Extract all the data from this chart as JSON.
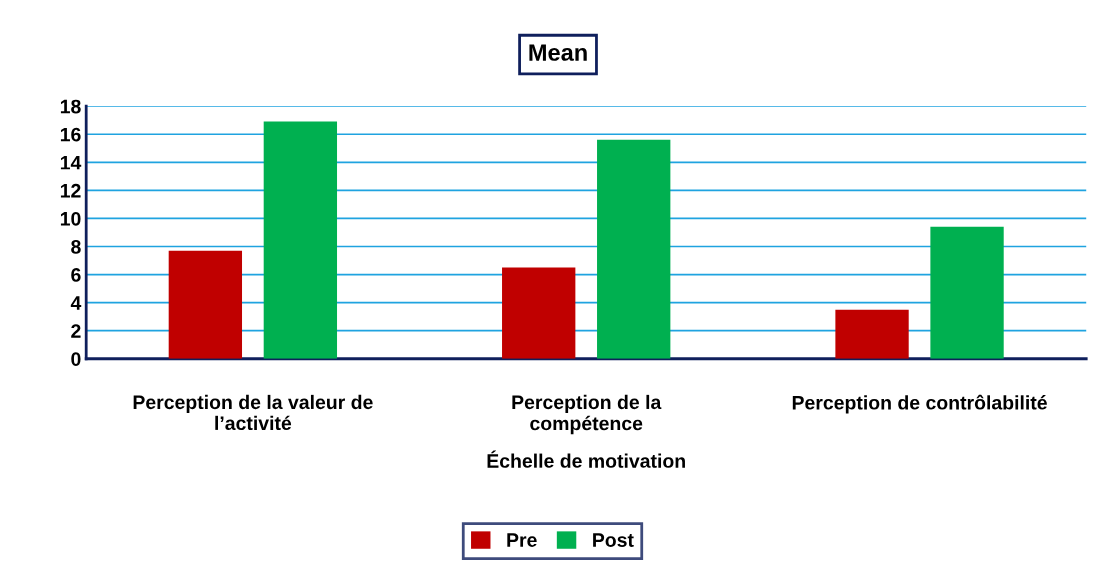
{
  "chart_data": {
    "type": "bar",
    "title": "Mean",
    "xlabel": "Échelle de motivation",
    "categories": [
      "Perception de la valeur de\nl’activité",
      "Perception de la\ncompétence",
      "Perception de contrôlabilité"
    ],
    "series": [
      {
        "name": "Pre",
        "color": "#c00000",
        "values": [
          7.7,
          6.5,
          3.5
        ]
      },
      {
        "name": "Post",
        "color": "#00b050",
        "values": [
          16.9,
          15.6,
          9.4
        ]
      }
    ],
    "ylim": [
      0,
      18
    ],
    "yticks": [
      0,
      2,
      4,
      6,
      8,
      10,
      12,
      14,
      16,
      18
    ],
    "grid": "y",
    "legend": "bottom"
  }
}
